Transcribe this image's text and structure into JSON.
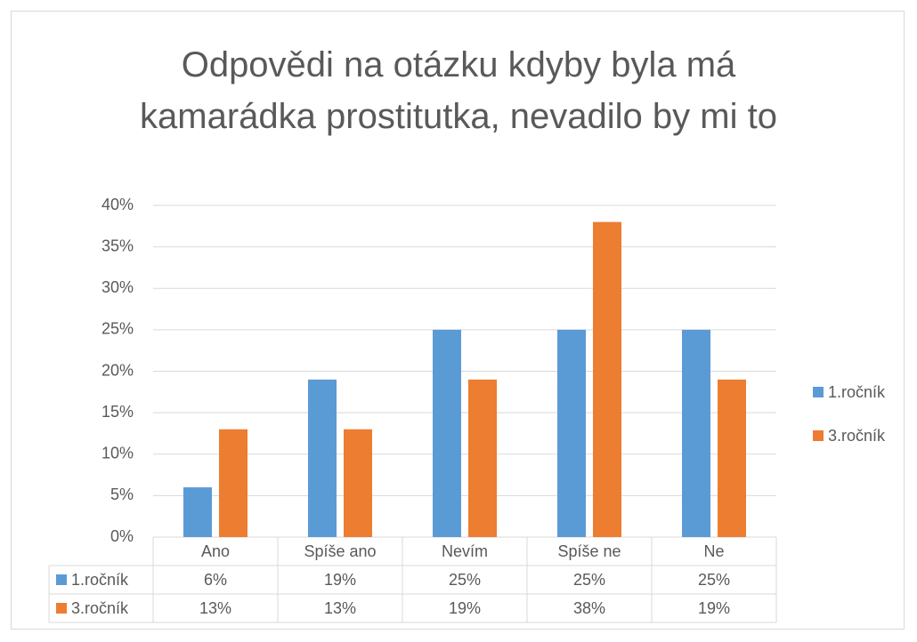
{
  "chart_data": {
    "type": "bar",
    "title": "Odpovědi na otázku kdyby byla má kamarádka prostitutka, nevadilo by mi to",
    "categories": [
      "Ano",
      "Spíše ano",
      "Nevím",
      "Spíše ne",
      "Ne"
    ],
    "series": [
      {
        "name": "1.ročník",
        "color": "#5b9bd5",
        "values": [
          6,
          19,
          25,
          25,
          25
        ],
        "value_labels": [
          "6%",
          "19%",
          "25%",
          "25%",
          "25%"
        ]
      },
      {
        "name": "3.ročník",
        "color": "#ed7d31",
        "values": [
          13,
          13,
          19,
          38,
          19
        ],
        "value_labels": [
          "13%",
          "13%",
          "19%",
          "38%",
          "19%"
        ]
      }
    ],
    "ylim": [
      0,
      40
    ],
    "yticks": [
      {
        "value": 0,
        "label": "0%"
      },
      {
        "value": 5,
        "label": "5%"
      },
      {
        "value": 10,
        "label": "10%"
      },
      {
        "value": 15,
        "label": "15%"
      },
      {
        "value": 20,
        "label": "20%"
      },
      {
        "value": 25,
        "label": "25%"
      },
      {
        "value": 30,
        "label": "30%"
      },
      {
        "value": 35,
        "label": "35%"
      },
      {
        "value": 40,
        "label": "40%"
      }
    ],
    "grid": true,
    "legend": "right",
    "data_table": true
  }
}
